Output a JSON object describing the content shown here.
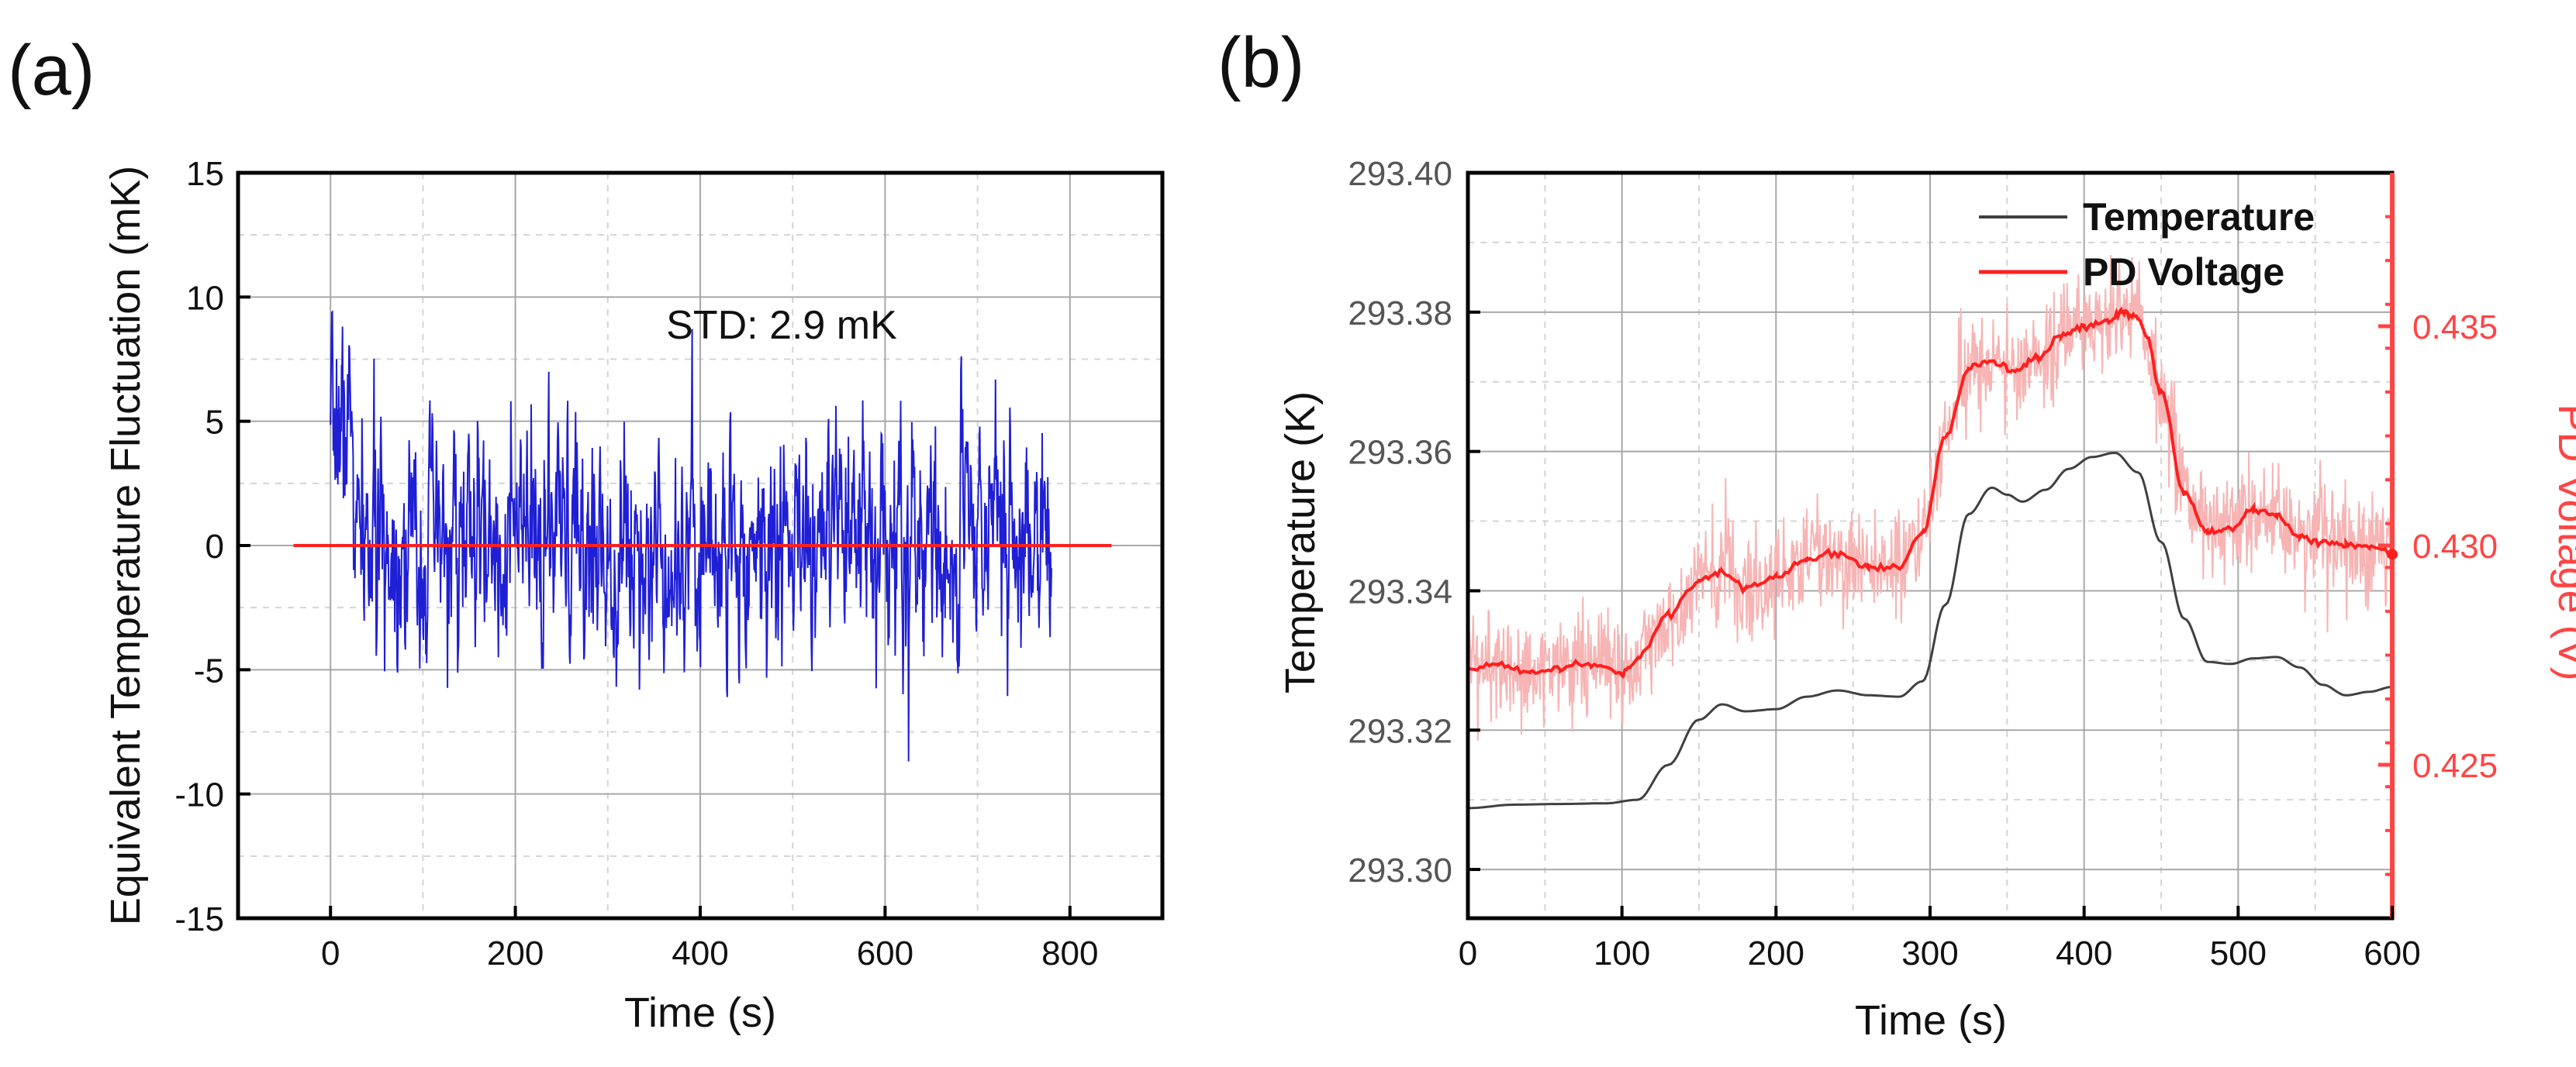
{
  "panels": {
    "a": {
      "label": "(a)"
    },
    "b": {
      "label": "(b)"
    }
  },
  "chart_data": [
    {
      "id": "a",
      "type": "line",
      "xlabel": "Time (s)",
      "ylabel": "Equivalent Temperature Fluctuation (mK)",
      "xlim": [
        -100,
        900
      ],
      "ylim": [
        -15,
        15
      ],
      "xticks": [
        0,
        200,
        400,
        600,
        800
      ],
      "yticks": [
        -15,
        -10,
        -5,
        0,
        5,
        10,
        15
      ],
      "annotation": "STD: 2.9 mK",
      "series": [
        {
          "name": "Temperature fluctuation",
          "color": "#1f1fd6",
          "kind": "noise",
          "x_range": [
            0,
            780
          ],
          "std": 2.9
        },
        {
          "name": "Zero line",
          "color": "#ff2020",
          "kind": "line",
          "x": [
            -40,
            845
          ],
          "y": [
            0,
            0
          ]
        }
      ]
    },
    {
      "id": "b",
      "type": "line",
      "xlabel": "Time (s)",
      "ylabel": "Temperature (K)",
      "ylabel_right": "PD Voltage (V)",
      "xlim": [
        0,
        600
      ],
      "ylim": [
        293.293,
        293.4
      ],
      "ylim_right": [
        0.4215,
        0.4385
      ],
      "xticks": [
        0,
        100,
        200,
        300,
        400,
        500,
        600
      ],
      "yticks": [
        293.3,
        293.32,
        293.34,
        293.36,
        293.38,
        293.4
      ],
      "ytick_labels": [
        "293.30",
        "293.32",
        "293.34",
        "293.36",
        "293.38",
        "293.40"
      ],
      "yticks_right": [
        0.425,
        0.43,
        0.435
      ],
      "ytick_labels_right": [
        "0.425",
        "0.430",
        "0.435"
      ],
      "colors": {
        "temperature": "#404040",
        "pd": "#ff1f1f",
        "pd_raw": "#f7b4b4",
        "right_axis": "#ff4444"
      },
      "legend": [
        {
          "label": "Temperature",
          "color": "#404040"
        },
        {
          "label": "PD Voltage",
          "color": "#ff1f1f"
        }
      ],
      "series": [
        {
          "name": "Temperature",
          "axis": "left",
          "x": [
            0,
            30,
            60,
            90,
            110,
            130,
            150,
            165,
            180,
            200,
            220,
            240,
            260,
            280,
            295,
            310,
            325,
            340,
            350,
            360,
            375,
            390,
            405,
            420,
            435,
            450,
            465,
            480,
            495,
            510,
            525,
            540,
            555,
            570,
            585,
            600
          ],
          "y": [
            293.3088,
            293.3093,
            293.3094,
            293.3095,
            293.31,
            293.315,
            293.3215,
            293.3237,
            293.3227,
            293.323,
            293.3248,
            293.3257,
            293.325,
            293.3248,
            293.327,
            293.338,
            293.351,
            293.3548,
            293.3538,
            293.3528,
            293.3545,
            293.3575,
            293.3592,
            293.3598,
            293.357,
            293.347,
            293.336,
            293.3298,
            293.3295,
            293.3303,
            293.3305,
            293.329,
            293.3265,
            293.325,
            293.3255,
            293.3262
          ]
        },
        {
          "name": "PD Voltage",
          "axis": "right",
          "x": [
            0,
            20,
            40,
            60,
            80,
            100,
            110,
            130,
            150,
            165,
            180,
            200,
            220,
            240,
            260,
            280,
            295,
            310,
            325,
            340,
            355,
            370,
            385,
            400,
            415,
            425,
            435,
            440,
            450,
            465,
            480,
            495,
            510,
            525,
            540,
            555,
            570,
            585,
            600
          ],
          "y": [
            0.4272,
            0.4273,
            0.4271,
            0.4272,
            0.4273,
            0.4271,
            0.4274,
            0.4284,
            0.4292,
            0.4294,
            0.429,
            0.4293,
            0.4297,
            0.4298,
            0.4295,
            0.4295,
            0.4303,
            0.4325,
            0.434,
            0.4342,
            0.434,
            0.4343,
            0.4348,
            0.435,
            0.4351,
            0.4353,
            0.4352,
            0.4348,
            0.4335,
            0.4312,
            0.4303,
            0.4304,
            0.4308,
            0.4307,
            0.4302,
            0.4301,
            0.43,
            0.43,
            0.4298
          ]
        },
        {
          "name": "PD Voltage (raw)",
          "axis": "right",
          "kind": "noise",
          "noise_amp": 0.0009
        }
      ]
    }
  ]
}
